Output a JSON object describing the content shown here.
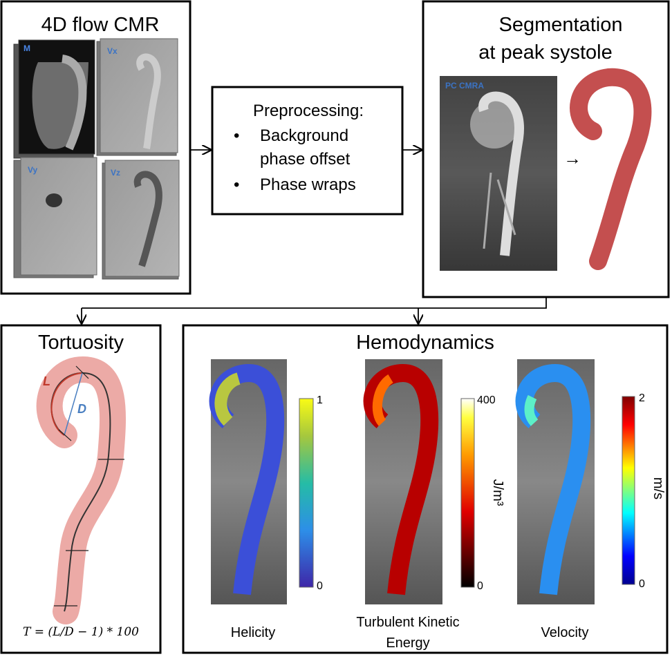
{
  "input": {
    "title": "4D flow CMR",
    "panels": [
      "M",
      "Vx",
      "Vy",
      "Vz"
    ]
  },
  "preprocessing": {
    "title": "Preprocessing:",
    "bullets": [
      [
        "Background",
        "phase offset"
      ],
      [
        "Phase wraps"
      ]
    ]
  },
  "segmentation": {
    "title": [
      "Segmentation",
      "at peak systole"
    ],
    "image_label": "PC CMRA",
    "arrow": "→"
  },
  "tortuosity": {
    "title": "Tortuosity",
    "length_label": "L",
    "distance_label": "D",
    "formula": "T = (L/D − 1) * 100"
  },
  "hemodynamics": {
    "title": "Hemodynamics",
    "maps": [
      {
        "name": "Helicity",
        "max": 1,
        "min": 0
      },
      {
        "name": [
          "Turbulent Kinetic",
          "Energy"
        ],
        "max": 400,
        "min": 0,
        "unit": "J/m³"
      },
      {
        "name": "Velocity",
        "max": 2,
        "min": 0,
        "unit": "m/s"
      }
    ]
  }
}
